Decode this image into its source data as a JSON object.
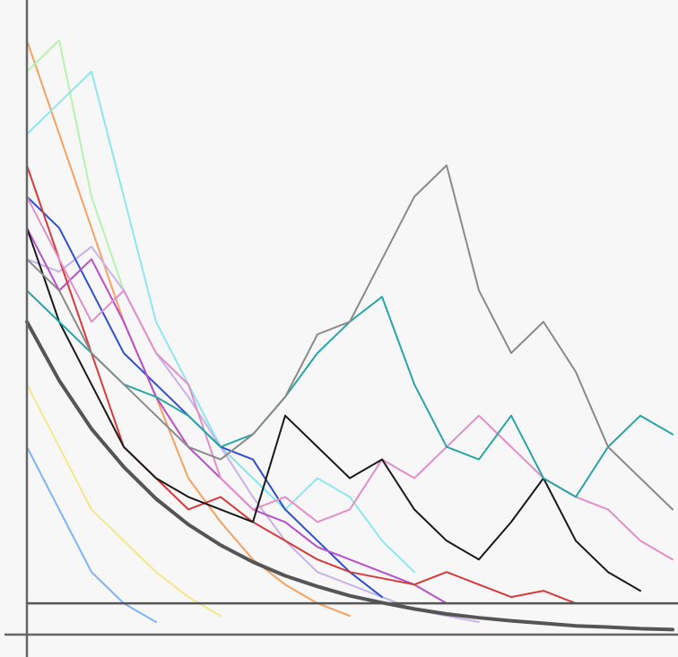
{
  "chart_data": {
    "type": "line",
    "x": [
      0,
      5,
      10,
      15,
      20,
      25,
      30,
      35,
      40,
      45,
      50,
      55,
      60,
      65,
      70,
      75,
      80,
      85,
      90,
      95,
      100
    ],
    "xlim": [
      0,
      100
    ],
    "ylim": [
      0,
      100
    ],
    "grid": false,
    "reference_line": 5,
    "series": [
      {
        "color": "#f4a261",
        "width": 2,
        "values": [
          95,
          80,
          65,
          50,
          38,
          25,
          18,
          12,
          8,
          5,
          3,
          null,
          null,
          null,
          null,
          null,
          null,
          null,
          null,
          null,
          null
        ]
      },
      {
        "color": "#b6f2b0",
        "width": 2,
        "values": [
          90,
          95,
          70,
          55,
          45,
          40,
          30,
          25,
          20,
          15,
          10,
          6,
          4,
          null,
          null,
          null,
          null,
          null,
          null,
          null,
          null
        ]
      },
      {
        "color": "#8ee6ee",
        "width": 2,
        "values": [
          80,
          85,
          90,
          70,
          50,
          40,
          30,
          25,
          20,
          25,
          22,
          15,
          10,
          null,
          null,
          null,
          null,
          null,
          null,
          null,
          null
        ]
      },
      {
        "color": "#f3e88a",
        "width": 2,
        "values": [
          40,
          30,
          20,
          15,
          10,
          6,
          3,
          null,
          null,
          null,
          null,
          null,
          null,
          null,
          null,
          null,
          null,
          null,
          null,
          null,
          null
        ]
      },
      {
        "color": "#7fb3f5",
        "width": 2,
        "values": [
          30,
          20,
          10,
          5,
          2,
          null,
          null,
          null,
          null,
          null,
          null,
          null,
          null,
          null,
          null,
          null,
          null,
          null,
          null,
          null,
          null
        ]
      },
      {
        "color": "#c7b2ea",
        "width": 2,
        "values": [
          60,
          58,
          62,
          55,
          45,
          38,
          30,
          22,
          15,
          10,
          8,
          6,
          4,
          3,
          2,
          null,
          null,
          null,
          null,
          null,
          null
        ]
      },
      {
        "color": "#2f4fd0",
        "width": 2,
        "values": [
          70,
          65,
          55,
          45,
          40,
          35,
          30,
          28,
          20,
          15,
          10,
          6,
          null,
          null,
          null,
          null,
          null,
          null,
          null,
          null,
          null
        ]
      },
      {
        "color": "#b84fc9",
        "width": 2,
        "values": [
          65,
          55,
          60,
          50,
          38,
          30,
          25,
          20,
          18,
          14,
          12,
          10,
          8,
          5,
          null,
          null,
          null,
          null,
          null,
          null,
          null
        ]
      },
      {
        "color": "#d63a3a",
        "width": 2,
        "values": [
          75,
          60,
          45,
          30,
          25,
          20,
          22,
          18,
          15,
          12,
          10,
          9,
          8,
          10,
          8,
          6,
          7,
          5,
          null,
          null,
          null
        ]
      },
      {
        "color": "#e28fc8",
        "width": 2,
        "values": [
          70,
          60,
          50,
          55,
          45,
          40,
          25,
          20,
          22,
          18,
          20,
          28,
          25,
          30,
          35,
          30,
          25,
          22,
          20,
          15,
          12
        ]
      },
      {
        "color": "#1a1a1a",
        "width": 2,
        "values": [
          65,
          50,
          40,
          30,
          25,
          22,
          20,
          18,
          35,
          30,
          25,
          28,
          20,
          15,
          12,
          18,
          25,
          15,
          10,
          7,
          null
        ]
      },
      {
        "color": "#2aa5a5",
        "width": 2,
        "values": [
          55,
          50,
          45,
          40,
          38,
          35,
          30,
          32,
          38,
          45,
          50,
          54,
          40,
          30,
          28,
          35,
          25,
          22,
          30,
          35,
          32
        ]
      },
      {
        "color": "#8a8a8a",
        "width": 2,
        "values": [
          60,
          55,
          45,
          40,
          35,
          30,
          28,
          32,
          38,
          48,
          50,
          60,
          70,
          75,
          55,
          45,
          50,
          42,
          30,
          25,
          20
        ]
      },
      {
        "color": "#555555",
        "width": 4,
        "values": [
          50,
          40.6,
          32.9,
          26.8,
          21.7,
          17.6,
          14.3,
          11.6,
          9.4,
          7.7,
          6.2,
          5.1,
          4.1,
          3.3,
          2.7,
          2.2,
          1.8,
          1.4,
          1.2,
          0.95,
          0.8
        ]
      }
    ]
  }
}
